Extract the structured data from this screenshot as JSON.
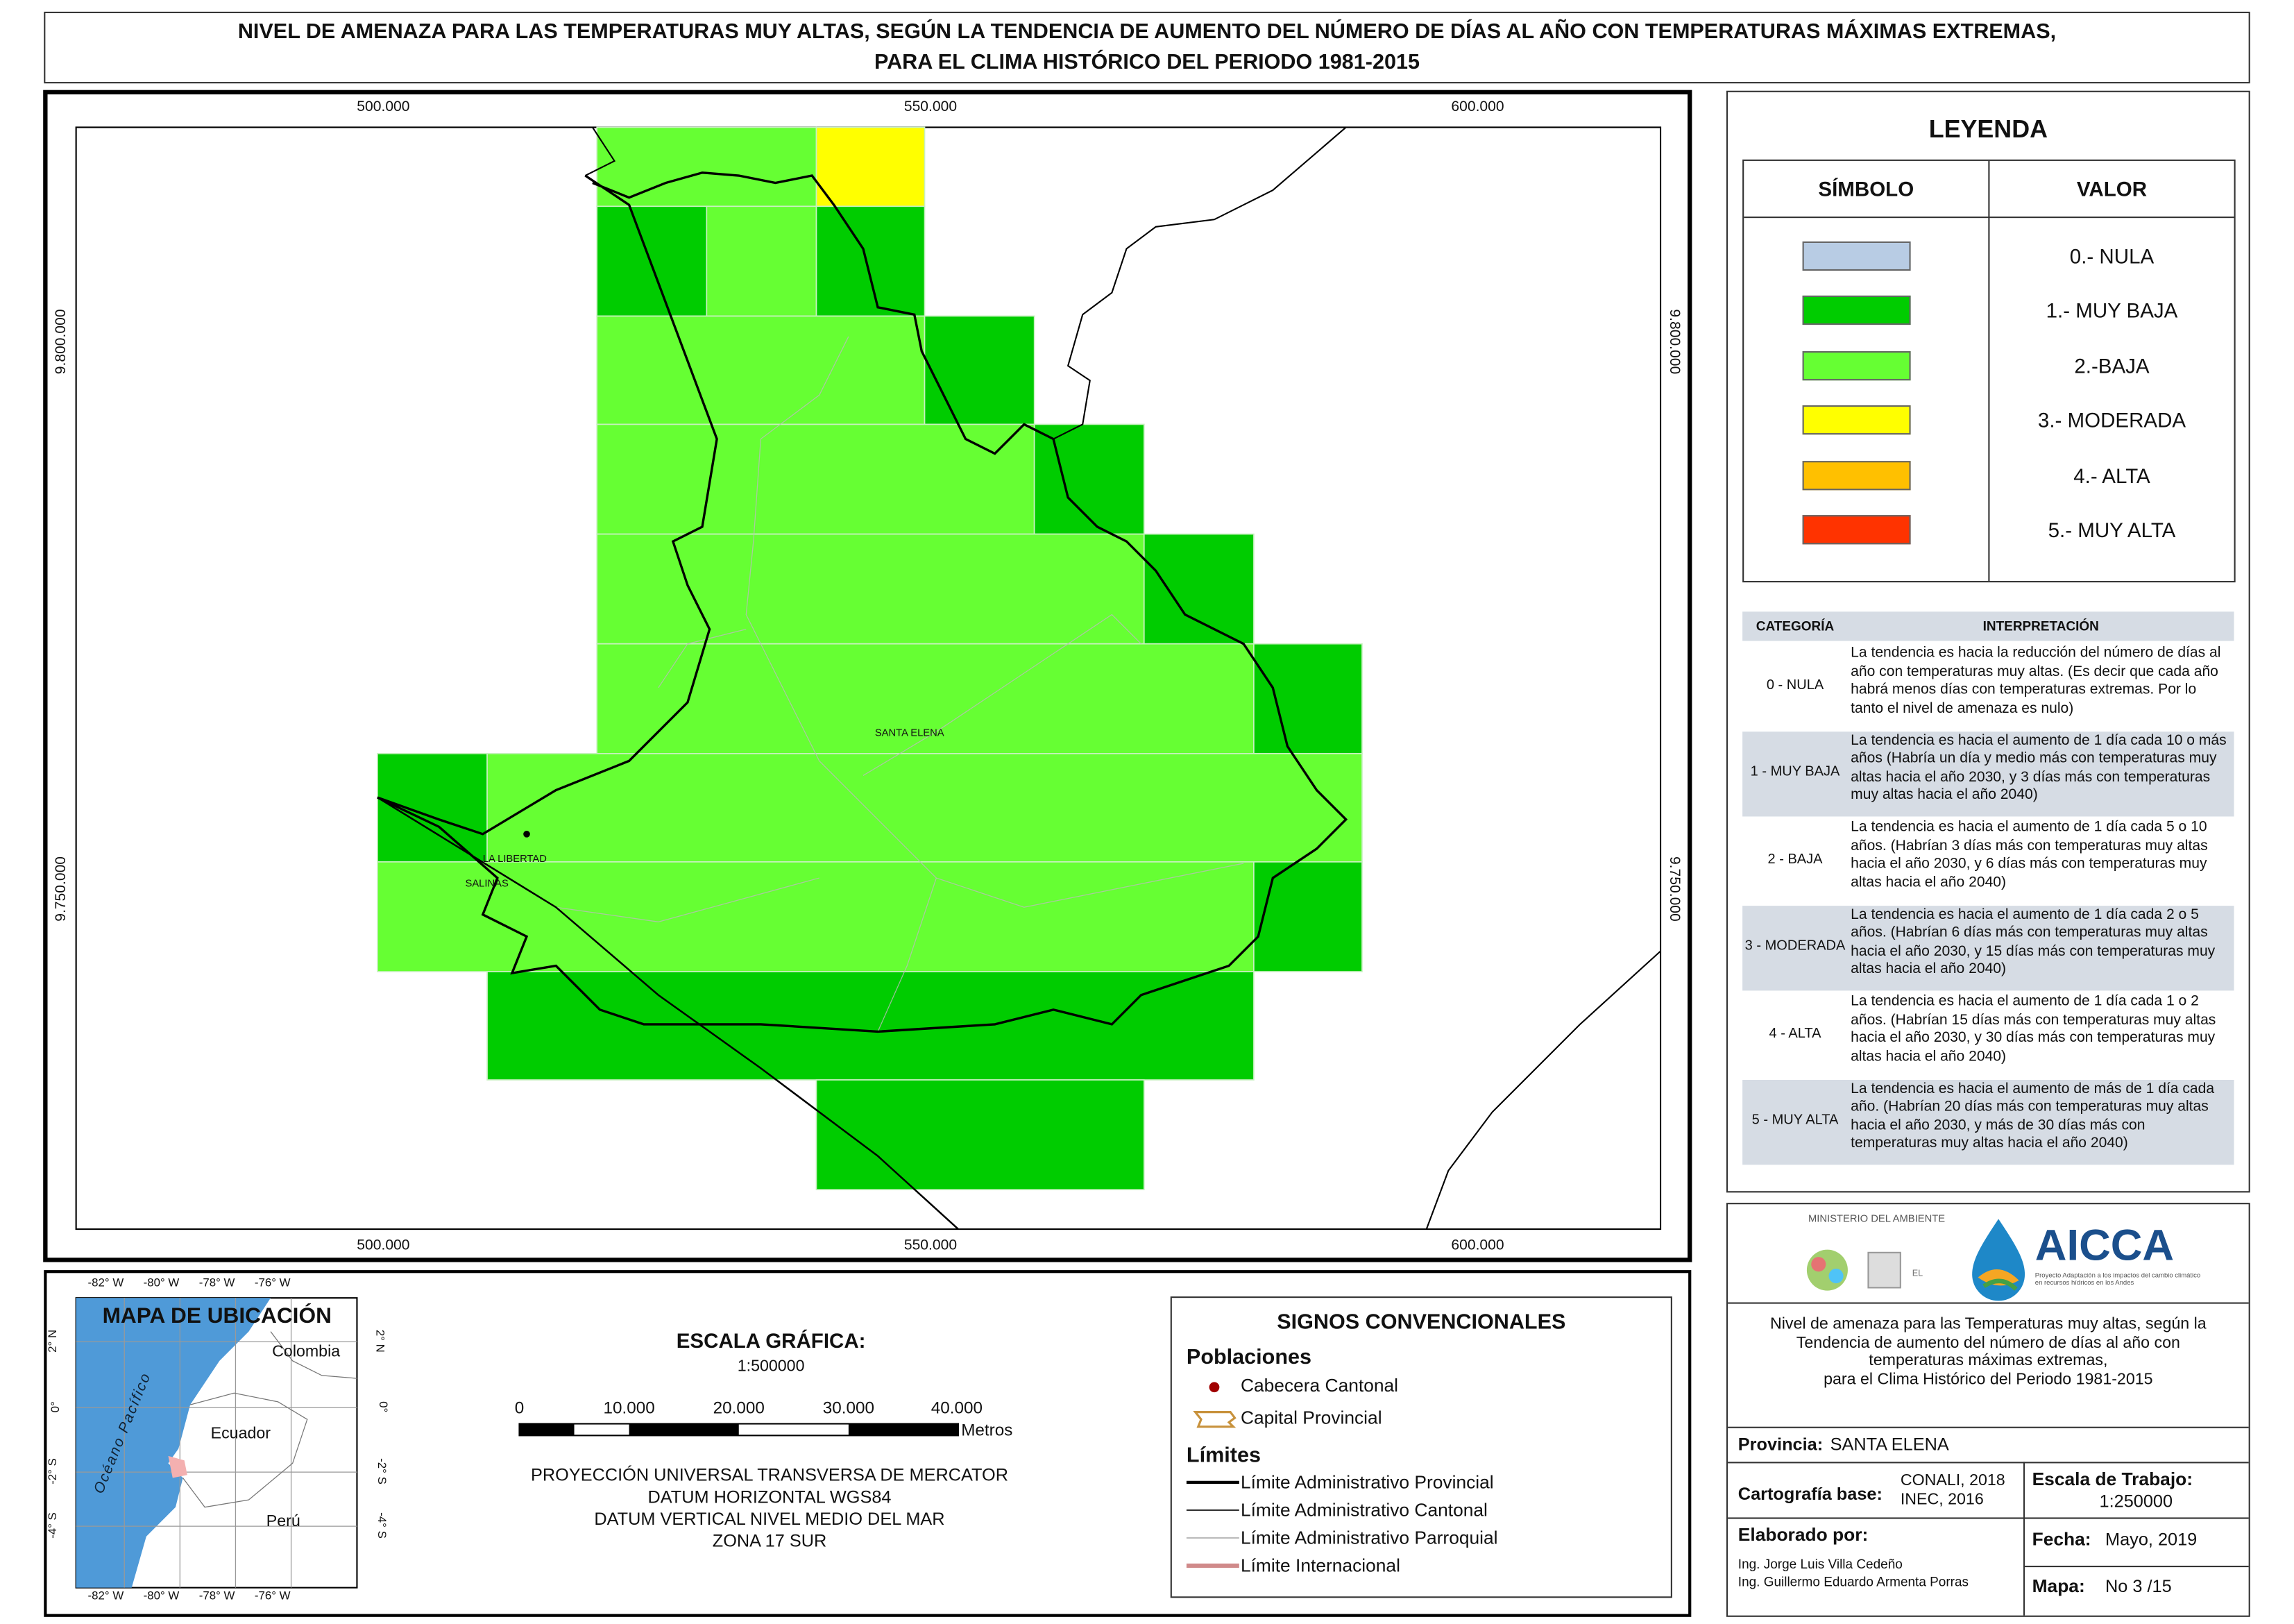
{
  "title": [
    "NIVEL DE AMENAZA PARA LAS TEMPERATURAS MUY ALTAS, SEGÚN LA TENDENCIA DE AUMENTO DEL NÚMERO DE DÍAS AL AÑO CON TEMPERATURAS MÁXIMAS EXTREMAS,",
    "PARA EL CLIMA HISTÓRICO DEL PERIODO 1981-2015"
  ],
  "map": {
    "x_labels": [
      "500.000",
      "550.000",
      "600.000"
    ],
    "y_labels": [
      "9.800.000",
      "9.750.000"
    ],
    "places": [
      "SANTA ELENA",
      "LA LIBERTAD",
      "SALINAS"
    ]
  },
  "legend": {
    "title": "LEYENDA",
    "headers": [
      "SÍMBOLO",
      "VALOR"
    ],
    "items": [
      {
        "label": "0.- NULA",
        "color": "#b8cce4"
      },
      {
        "label": "1.- MUY BAJA",
        "color": "#00cc00"
      },
      {
        "label": "2.-BAJA",
        "color": "#66ff33"
      },
      {
        "label": "3.- MODERADA",
        "color": "#ffff00"
      },
      {
        "label": "4.- ALTA",
        "color": "#ffc000"
      },
      {
        "label": "5.- MUY ALTA",
        "color": "#ff3300"
      }
    ]
  },
  "interpretation": {
    "headers": [
      "CATEGORÍA",
      "INTERPRETACIÓN"
    ],
    "rows": [
      [
        "0 - NULA",
        "La tendencia es hacia la reducción del número de días al año con temperaturas muy altas. (Es decir que cada año habrá menos días con temperaturas extremas. Por lo tanto el nivel de amenaza es nulo)"
      ],
      [
        "1 - MUY BAJA",
        "La tendencia es hacia el aumento de 1 día cada 10 o más años (Habría un día y medio más con temperaturas muy altas hacia el año 2030, y 3 días más con temperaturas muy altas hacia el año 2040)"
      ],
      [
        "2 - BAJA",
        "La tendencia es hacia el aumento de 1 día cada 5 o 10 años. (Habrían 3 días más con temperaturas muy altas hacia el año 2030, y 6 días más con temperaturas muy altas hacia el año 2040)"
      ],
      [
        "3 - MODERADA",
        "La tendencia es hacia el aumento de 1 día cada 2 o 5 años. (Habrían 6 días más con temperaturas muy altas hacia el año 2030, y 15 días más con temperaturas muy altas hacia el año 2040)"
      ],
      [
        "4 - ALTA",
        "La tendencia es hacia el aumento de 1 día cada 1 o 2 años. (Habrían 15 días más con temperaturas muy altas hacia el año 2030, y 30 días más con temperaturas muy altas hacia el año 2040)"
      ],
      [
        "5 - MUY ALTA",
        "La tendencia es hacia el aumento de más de 1 día cada año. (Habrían 20 días más con temperaturas muy altas hacia el año 2030, y más de 30 días más con temperaturas muy altas hacia el año 2040)"
      ]
    ]
  },
  "location_map": {
    "title": "MAPA DE UBICACIÓN",
    "lon_labels": [
      "-82° W",
      "-80° W",
      "-78° W",
      "-76° W"
    ],
    "lat_labels": [
      "2° N",
      "0°",
      "-2° S",
      "-4° S"
    ],
    "places": [
      "Colombia",
      "Ecuador",
      "Perú",
      "Océano Pacífico"
    ]
  },
  "scale": {
    "title": "ESCALA GRÁFICA:",
    "ratio": "1:500000",
    "ticks": [
      "0",
      "10.000",
      "20.000",
      "30.000",
      "40.000"
    ],
    "unit": "Metros",
    "projection": [
      "PROYECCIÓN UNIVERSAL TRANSVERSA DE MERCATOR",
      "DATUM HORIZONTAL WGS84",
      "DATUM VERTICAL NIVEL MEDIO DEL MAR",
      "ZONA 17 SUR"
    ]
  },
  "signs": {
    "title": "SIGNOS CONVENCIONALES",
    "populations": {
      "title": "Poblaciones",
      "items": [
        "Cabecera Cantonal",
        "Capital Provincial"
      ]
    },
    "limits": {
      "title": "Límites",
      "items": [
        "Límite Administrativo Provincial",
        "Límite Administrativo Cantonal",
        "Límite Administrativo Parroquial",
        "Límite Internacional"
      ]
    }
  },
  "info": {
    "ministry": "MINISTERIO DEL AMBIENTE",
    "project": "AICCA",
    "project_subtitle": "Proyecto Adaptación a los impactos del cambio climático en recursos hídricos en los Andes",
    "description": [
      "Nivel de amenaza para las Temperaturas muy altas, según la",
      "Tendencia de aumento del número de días al año con",
      "temperaturas máximas extremas,",
      "para el Clima Histórico del Periodo 1981-2015"
    ],
    "province_label": "Provincia:",
    "province": "SANTA ELENA",
    "cartography_label": "Cartografía base:",
    "cartography": [
      "CONALI, 2018",
      "INEC, 2016"
    ],
    "scale_label": "Escala de Trabajo:",
    "scale": "1:250000",
    "authors_label": "Elaborado por:",
    "authors": [
      "Ing. Jorge Luis Villa Cedeño",
      "Ing. Guillermo Eduardo Armenta Porras"
    ],
    "date_label": "Fecha:",
    "date": "Mayo, 2019",
    "map_label": "Mapa:",
    "map_number": "No 3 /15"
  }
}
